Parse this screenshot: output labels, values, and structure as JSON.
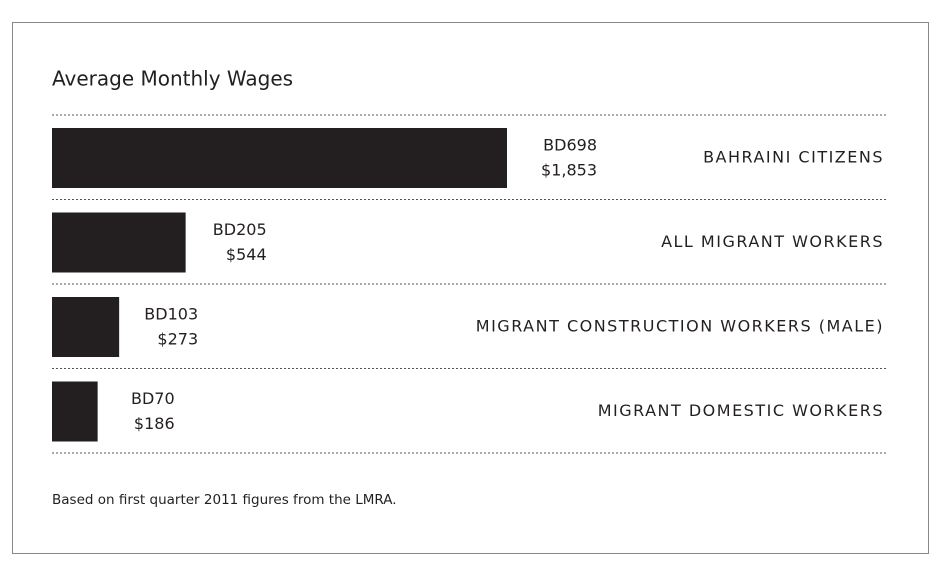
{
  "chart_data": {
    "type": "bar",
    "orientation": "horizontal",
    "title": "Average Monthly Wages",
    "categories": [
      "BAHRAINI CITIZENS",
      "ALL MIGRANT WORKERS",
      "MIGRANT CONSTRUCTION WORKERS (MALE)",
      "MIGRANT DOMESTIC WORKERS"
    ],
    "values": [
      698,
      205,
      103,
      70
    ],
    "value_labels": [
      "BD698",
      "BD205",
      "BD103",
      "BD70"
    ],
    "usd_labels": [
      "$1,853",
      "$544",
      "$273",
      "$186"
    ],
    "color": "#231f20",
    "note": "Based on first quarter 2011 figures from the LMRA."
  }
}
